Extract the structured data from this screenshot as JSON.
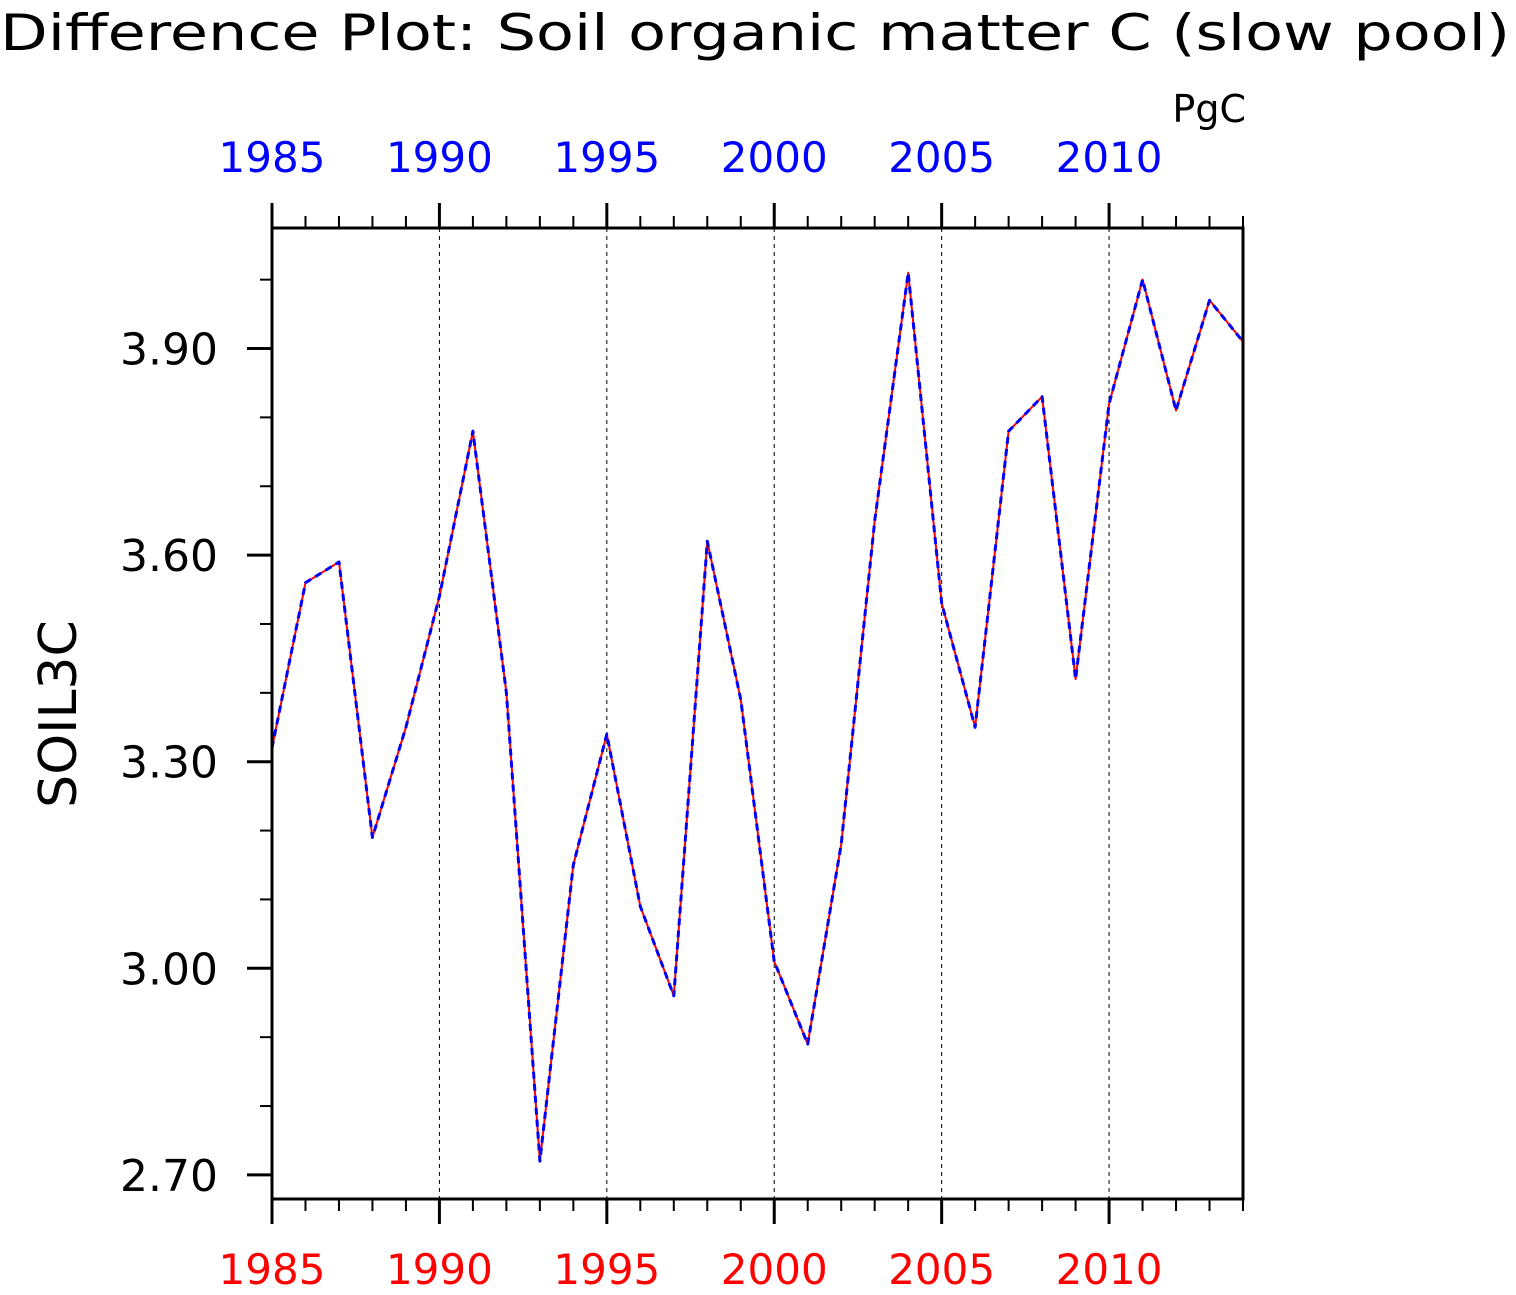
{
  "chart_data": {
    "type": "line",
    "title": "Difference Plot: Soil organic matter C (slow pool)",
    "units": "PgC",
    "ylabel": "SOIL3C",
    "xlabel": "",
    "xlim": [
      1985,
      2014
    ],
    "ylim": [
      2.665,
      4.075
    ],
    "x_ticks_major": [
      1985,
      1990,
      1995,
      2000,
      2005,
      2010
    ],
    "x_ticks_minor_step": 1,
    "y_ticks_major": [
      2.7,
      3.0,
      3.3,
      3.6,
      3.9
    ],
    "y_tick_labels": [
      "2.70",
      "3.00",
      "3.30",
      "3.60",
      "3.90"
    ],
    "y_ticks_minor_step": 0.1,
    "grid": "vertical dashed at major x ticks",
    "series": [
      {
        "color": "#ff0000",
        "style": "solid",
        "x": [
          1985,
          1986,
          1987,
          1988,
          1989,
          1990,
          1991,
          1992,
          1993,
          1994,
          1995,
          1996,
          1997,
          1998,
          1999,
          2000,
          2001,
          2002,
          2003,
          2004,
          2005,
          2006,
          2007,
          2008,
          2009,
          2010,
          2011,
          2012,
          2013,
          2014
        ],
        "values": [
          3.32,
          3.56,
          3.59,
          3.19,
          3.35,
          3.54,
          3.78,
          3.4,
          2.72,
          3.15,
          3.34,
          3.09,
          2.96,
          3.62,
          3.39,
          3.01,
          2.89,
          3.18,
          3.65,
          4.01,
          3.53,
          3.35,
          3.78,
          3.83,
          3.42,
          3.82,
          4.0,
          3.81,
          3.97,
          3.91
        ]
      },
      {
        "color": "#0000ff",
        "style": "dashed",
        "x": [
          1985,
          1986,
          1987,
          1988,
          1989,
          1990,
          1991,
          1992,
          1993,
          1994,
          1995,
          1996,
          1997,
          1998,
          1999,
          2000,
          2001,
          2002,
          2003,
          2004,
          2005,
          2006,
          2007,
          2008,
          2009,
          2010,
          2011,
          2012,
          2013,
          2014
        ],
        "values": [
          3.32,
          3.56,
          3.59,
          3.19,
          3.35,
          3.54,
          3.78,
          3.4,
          2.72,
          3.15,
          3.34,
          3.09,
          2.96,
          3.62,
          3.39,
          3.01,
          2.89,
          3.18,
          3.65,
          4.01,
          3.53,
          3.35,
          3.78,
          3.83,
          3.42,
          3.82,
          4.0,
          3.81,
          3.97,
          3.91
        ]
      }
    ],
    "colors": {
      "top_axis_labels": "#0000ff",
      "bottom_axis_labels": "#ff0000",
      "frame": "#000000"
    }
  }
}
